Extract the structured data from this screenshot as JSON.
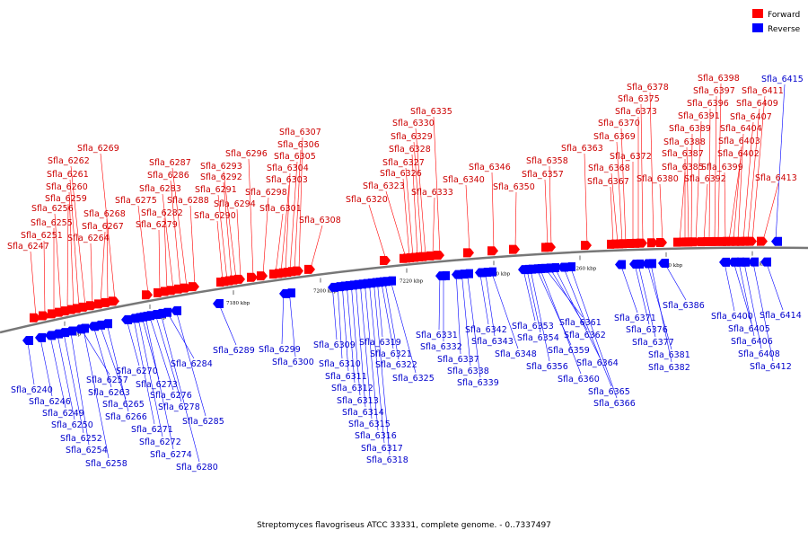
{
  "caption": "Streptomyces flavogriseus ATCC 33331, complete genome. - 0..7337497",
  "legend": [
    {
      "label": "Forward",
      "color": "#ff0000"
    },
    {
      "label": "Reverse",
      "color": "#0000ff"
    }
  ],
  "colors": {
    "forward": "#ff0000",
    "reverse": "#0000ff",
    "backbone": "#777777"
  },
  "ticks": [
    "7140 kbp",
    "7160 kbp",
    "7180 kbp",
    "7200 kbp",
    "7220 kbp",
    "7240 kbp",
    "7260 kbp",
    "7280 kbp",
    "7300 kbp"
  ],
  "forward_genes": [
    "Sfla_6247",
    "Sfla_6251",
    "Sfla_6255",
    "Sfla_6256",
    "Sfla_6259",
    "Sfla_6260",
    "Sfla_6261",
    "Sfla_6262",
    "Sfla_6264",
    "Sfla_6267",
    "Sfla_6268",
    "Sfla_6269",
    "Sfla_6275",
    "Sfla_6279",
    "Sfla_6282",
    "Sfla_6283",
    "Sfla_6286",
    "Sfla_6287",
    "Sfla_6288",
    "Sfla_6290",
    "Sfla_6291",
    "Sfla_6292",
    "Sfla_6293",
    "Sfla_6294",
    "Sfla_6296",
    "Sfla_6298",
    "Sfla_6301",
    "Sfla_6303",
    "Sfla_6304",
    "Sfla_6305",
    "Sfla_6306",
    "Sfla_6307",
    "Sfla_6308",
    "Sfla_6320",
    "Sfla_6323",
    "Sfla_6326",
    "Sfla_6327",
    "Sfla_6328",
    "Sfla_6329",
    "Sfla_6330",
    "Sfla_6333",
    "Sfla_6335",
    "Sfla_6340",
    "Sfla_6346",
    "Sfla_6350",
    "Sfla_6357",
    "Sfla_6358",
    "Sfla_6363",
    "Sfla_6367",
    "Sfla_6368",
    "Sfla_6369",
    "Sfla_6370",
    "Sfla_6372",
    "Sfla_6373",
    "Sfla_6375",
    "Sfla_6378",
    "Sfla_6380",
    "Sfla_6385",
    "Sfla_6387",
    "Sfla_6388",
    "Sfla_6389",
    "Sfla_6391",
    "Sfla_6392",
    "Sfla_6396",
    "Sfla_6397",
    "Sfla_6398",
    "Sfla_6399",
    "Sfla_6402",
    "Sfla_6403",
    "Sfla_6404",
    "Sfla_6407",
    "Sfla_6409",
    "Sfla_6411",
    "Sfla_6413"
  ],
  "reverse_genes": [
    "Sfla_6240",
    "Sfla_6246",
    "Sfla_6249",
    "Sfla_6250",
    "Sfla_6252",
    "Sfla_6254",
    "Sfla_6257",
    "Sfla_6258",
    "Sfla_6263",
    "Sfla_6265",
    "Sfla_6266",
    "Sfla_6270",
    "Sfla_6271",
    "Sfla_6272",
    "Sfla_6273",
    "Sfla_6274",
    "Sfla_6276",
    "Sfla_6278",
    "Sfla_6280",
    "Sfla_6284",
    "Sfla_6285",
    "Sfla_6289",
    "Sfla_6299",
    "Sfla_6300",
    "Sfla_6309",
    "Sfla_6310",
    "Sfla_6311",
    "Sfla_6312",
    "Sfla_6313",
    "Sfla_6314",
    "Sfla_6315",
    "Sfla_6316",
    "Sfla_6317",
    "Sfla_6318",
    "Sfla_6319",
    "Sfla_6321",
    "Sfla_6322",
    "Sfla_6325",
    "Sfla_6331",
    "Sfla_6332",
    "Sfla_6337",
    "Sfla_6338",
    "Sfla_6339",
    "Sfla_6342",
    "Sfla_6343",
    "Sfla_6348",
    "Sfla_6353",
    "Sfla_6354",
    "Sfla_6356",
    "Sfla_6359",
    "Sfla_6360",
    "Sfla_6361",
    "Sfla_6362",
    "Sfla_6364",
    "Sfla_6365",
    "Sfla_6366",
    "Sfla_6371",
    "Sfla_6376",
    "Sfla_6377",
    "Sfla_6381",
    "Sfla_6382",
    "Sfla_6386",
    "Sfla_6400",
    "Sfla_6405",
    "Sfla_6406",
    "Sfla_6408",
    "Sfla_6412",
    "Sfla_6414",
    "Sfla_6415"
  ]
}
